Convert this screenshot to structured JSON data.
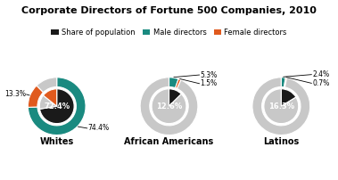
{
  "title": "Corporate Directors of Fortune 500 Companies, 2010",
  "legend": "upper center",
  "legend_items": [
    {
      "name": "Share of population",
      "color": "#1a1a1a"
    },
    {
      "name": "Male directors",
      "color": "#1a8a80"
    },
    {
      "name": "Female directors",
      "color": "#e05a1e"
    }
  ],
  "chart_data": [
    {
      "type": "pie",
      "title": "Whites",
      "series": [
        {
          "values": [
            72.4,
            13.3,
            14.3
          ],
          "colors": [
            "#1a1a1a",
            "#c8c8c8",
            "#e05a1e"
          ],
          "value_labels": [
            "72.4%",
            null,
            null
          ]
        },
        {
          "values": [
            74.4,
            13.3,
            12.3
          ],
          "colors": [
            "#1a8a80",
            "#e05a1e",
            "#c8c8c8"
          ],
          "value_labels": [
            "74.4%",
            "13.3%",
            null
          ]
        }
      ]
    },
    {
      "type": "pie",
      "title": "African Americans",
      "series": [
        {
          "values": [
            12.6,
            87.4
          ],
          "colors": [
            "#1a1a1a",
            "#c8c8c8"
          ],
          "value_labels": [
            "12.6%",
            null
          ]
        },
        {
          "values": [
            5.3,
            1.5,
            93.2
          ],
          "colors": [
            "#1a8a80",
            "#e05a1e",
            "#c8c8c8"
          ],
          "value_labels": [
            "5.3%",
            "1.5%",
            null
          ]
        }
      ]
    },
    {
      "type": "pie",
      "title": "Latinos",
      "series": [
        {
          "values": [
            16.3,
            83.7
          ],
          "colors": [
            "#1a1a1a",
            "#c8c8c8"
          ],
          "value_labels": [
            "16.3%",
            null
          ]
        },
        {
          "values": [
            2.4,
            0.7,
            96.9
          ],
          "colors": [
            "#1a8a80",
            "#e05a1e",
            "#c8c8c8"
          ],
          "value_labels": [
            "2.4%",
            "0.7%",
            null
          ]
        }
      ]
    }
  ]
}
